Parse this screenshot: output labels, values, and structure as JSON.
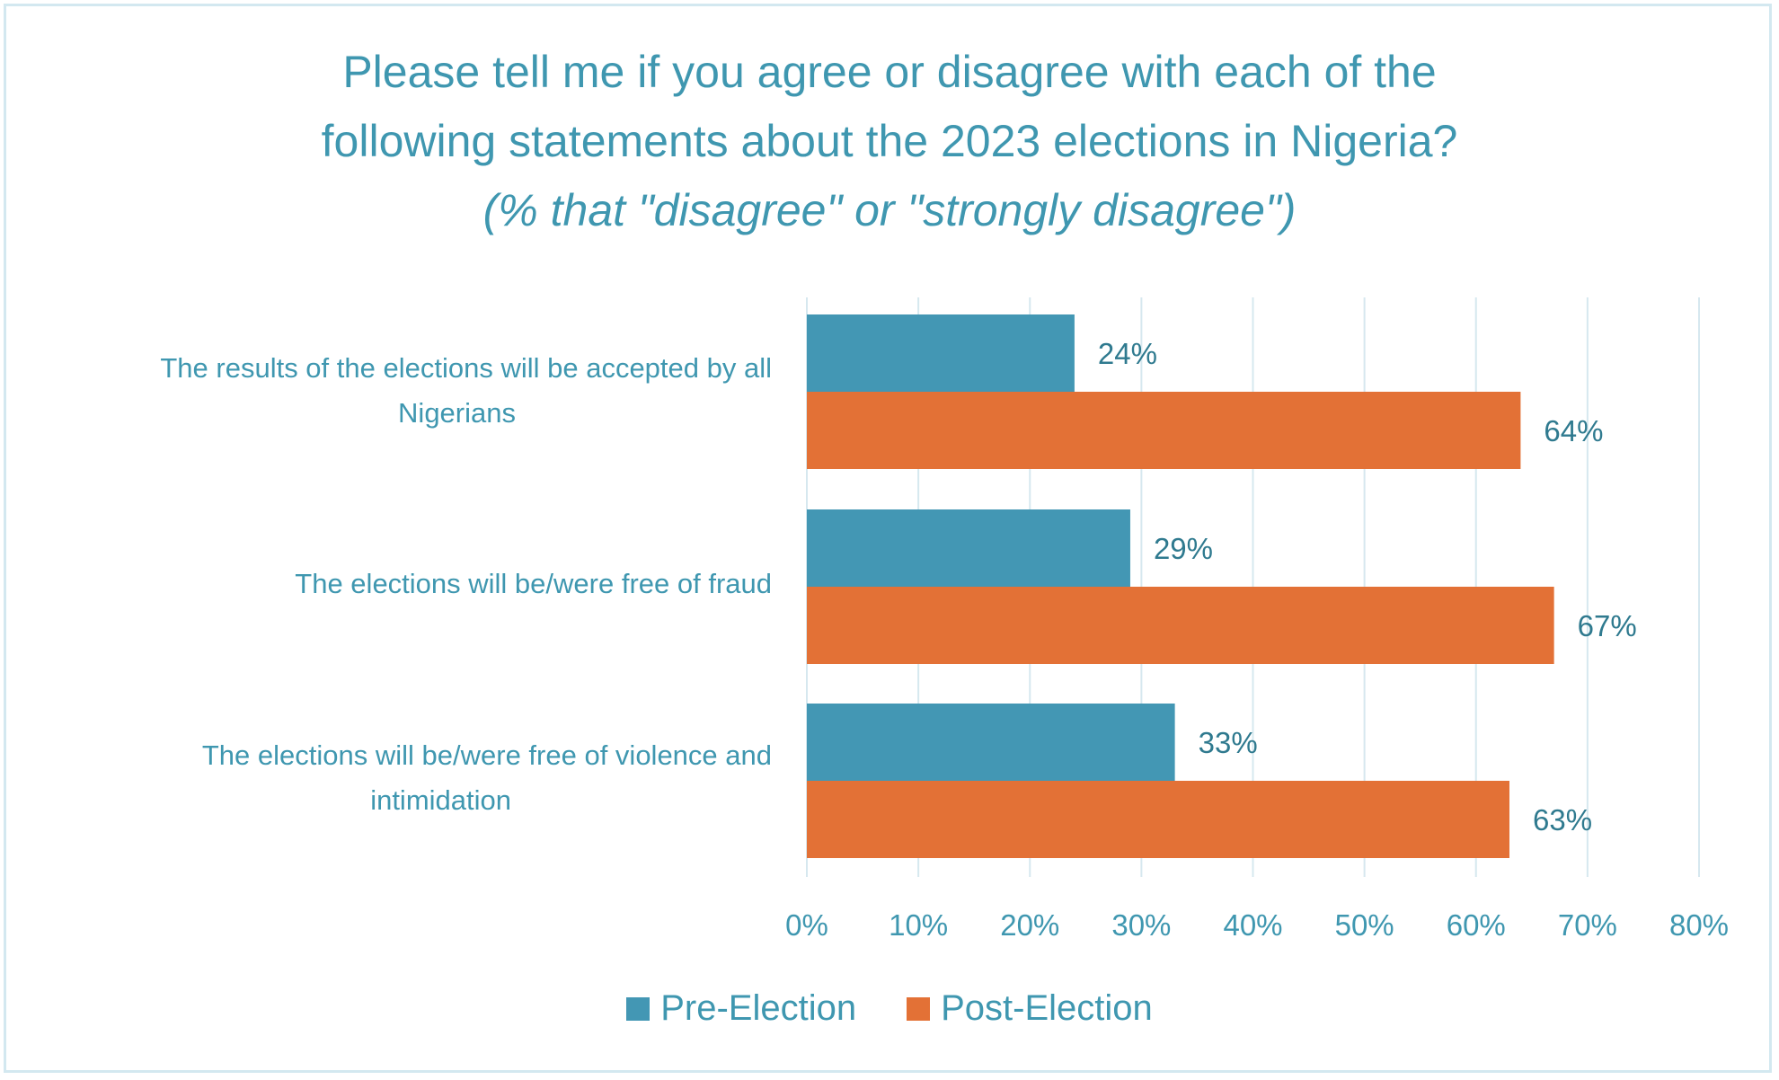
{
  "chart_data": {
    "type": "bar",
    "orientation": "horizontal",
    "title": "Please tell me if you agree or disagree with each of the following statements about the 2023 elections in Nigeria?",
    "title_lines": [
      "Please tell me if you agree or disagree with each of the",
      "following statements about the 2023 elections in Nigeria?"
    ],
    "subtitle": "(% that \"disagree\" or \"strongly disagree\")",
    "categories": [
      "The results of the elections will be accepted by all Nigerians",
      "The elections will be/were free of fraud",
      "The elections will be/were free of violence and intimidation"
    ],
    "category_lines": [
      [
        "The results of the elections will be accepted by all",
        "Nigerians"
      ],
      [
        "The elections will be/were free of fraud"
      ],
      [
        "The elections will be/were free of violence and",
        "intimidation"
      ]
    ],
    "series": [
      {
        "name": "Pre-Election",
        "color": "#4397b4",
        "values": [
          24,
          29,
          33
        ],
        "labels": [
          "24%",
          "29%",
          "33%"
        ]
      },
      {
        "name": "Post-Election",
        "color": "#e37136",
        "values": [
          64,
          67,
          63
        ],
        "labels": [
          "64%",
          "67%",
          "63%"
        ]
      }
    ],
    "xlim": [
      0,
      80
    ],
    "xticks": [
      "0%",
      "10%",
      "20%",
      "30%",
      "40%",
      "50%",
      "60%",
      "70%",
      "80%"
    ],
    "grid": true,
    "legend": "bottom"
  }
}
